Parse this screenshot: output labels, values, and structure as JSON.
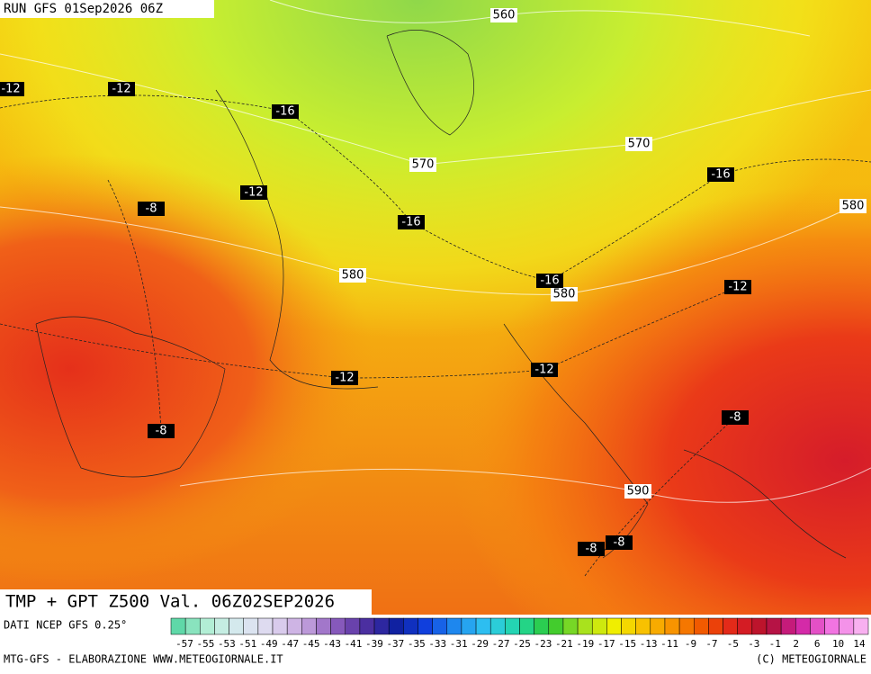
{
  "header": {
    "run": "RUN GFS 01Sep2026 06Z"
  },
  "map": {
    "height_labels": [
      "560",
      "570",
      "570",
      "580",
      "580",
      "580",
      "590"
    ],
    "temp_labels": [
      "-12",
      "-12",
      "-12",
      "-12",
      "-12",
      "-12",
      "-16",
      "-16",
      "-16",
      "-16",
      "-8",
      "-8",
      "-8",
      "-8",
      "-8"
    ]
  },
  "footer": {
    "title": "TMP + GPT Z500 Val. 06Z02SEP2026",
    "source": "DATI NCEP GFS 0.25°",
    "credit": "MTG-GFS - ELABORAZIONE WWW.METEOGIORNALE.IT",
    "copyright": "(C) METEOGIORNALE"
  },
  "colorbar": {
    "ticks": [
      -57,
      -55,
      -53,
      -51,
      -49,
      -47,
      -45,
      -43,
      -41,
      -39,
      -37,
      -35,
      -33,
      -31,
      -29,
      -27,
      -25,
      -23,
      -21,
      -19,
      -17,
      -15,
      -13,
      -11,
      -9,
      -7,
      -5,
      -3,
      -1,
      2,
      6,
      10,
      14
    ]
  }
}
